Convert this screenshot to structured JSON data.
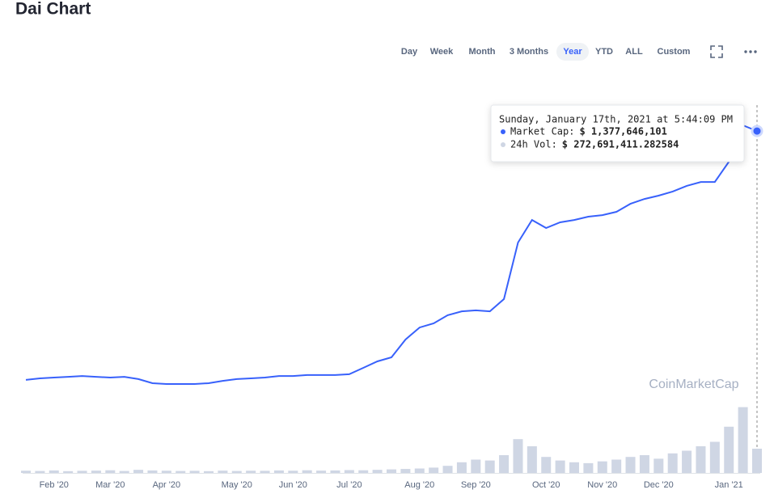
{
  "header": {
    "title": "Dai Chart"
  },
  "controls": {
    "ranges": [
      "Day",
      "Week",
      "Month",
      "3 Months",
      "Year",
      "YTD",
      "ALL",
      "Custom"
    ],
    "active": 4
  },
  "chart_data": {
    "type": "line",
    "x": [
      null,
      null,
      "Feb '20",
      null,
      null,
      null,
      "Mar '20",
      null,
      null,
      null,
      "Apr '20",
      null,
      null,
      null,
      null,
      "May '20",
      null,
      null,
      null,
      "Jun '20",
      null,
      null,
      null,
      "Jul '20",
      null,
      null,
      null,
      null,
      "Aug '20",
      null,
      null,
      null,
      "Sep '20",
      null,
      null,
      null,
      null,
      "Oct '20",
      null,
      null,
      null,
      "Nov '20",
      null,
      null,
      null,
      "Dec '20",
      null,
      null,
      null,
      null,
      "Jan '21",
      null,
      null
    ],
    "series": [
      {
        "color": "#3861fb",
        "values": [
          100000000,
          108000000,
          112000000,
          116000000,
          120000000,
          116000000,
          112000000,
          116000000,
          104000000,
          83000000,
          79000000,
          79000000,
          79000000,
          83000000,
          95000000,
          104000000,
          108000000,
          112000000,
          120000000,
          120000000,
          125000000,
          125000000,
          125000000,
          129000000,
          162000000,
          195000000,
          216000000,
          307000000,
          369000000,
          390000000,
          432000000,
          452000000,
          457000000,
          452000000,
          515000000,
          805000000,
          921000000,
          880000000,
          909000000,
          921000000,
          938000000,
          946000000,
          963000000,
          1004000000,
          1029000000,
          1046000000,
          1067000000,
          1096000000,
          1116000000,
          1116000000,
          1220000000,
          1407000000,
          1377646101
        ]
      },
      {
        "color": "#cfd6e4",
        "axis": "y2",
        "values": [
          25000000,
          22000000,
          28000000,
          20000000,
          24000000,
          26000000,
          30000000,
          22000000,
          35000000,
          28000000,
          25000000,
          22000000,
          24000000,
          20000000,
          26000000,
          22000000,
          25000000,
          24000000,
          28000000,
          25000000,
          30000000,
          26000000,
          28000000,
          32000000,
          30000000,
          35000000,
          40000000,
          45000000,
          50000000,
          60000000,
          80000000,
          120000000,
          150000000,
          140000000,
          200000000,
          380000000,
          300000000,
          180000000,
          140000000,
          120000000,
          110000000,
          130000000,
          150000000,
          180000000,
          200000000,
          160000000,
          220000000,
          250000000,
          300000000,
          350000000,
          520000000,
          740000000,
          272691411.282584
        ]
      }
    ],
    "ylim": [
      0,
      1500000000
    ],
    "y2lim": [
      0,
      800000000
    ],
    "tooltip": {
      "title": "Sunday, January 17th, 2021 at 5:44:09 PM",
      "items": [
        {
          "label": "Market Cap:",
          "value": "$ 1,377,646,101"
        },
        {
          "label": "24h Vol:",
          "value": "$ 272,691,411.282584"
        }
      ]
    },
    "watermark": "CoinMarketCap"
  }
}
